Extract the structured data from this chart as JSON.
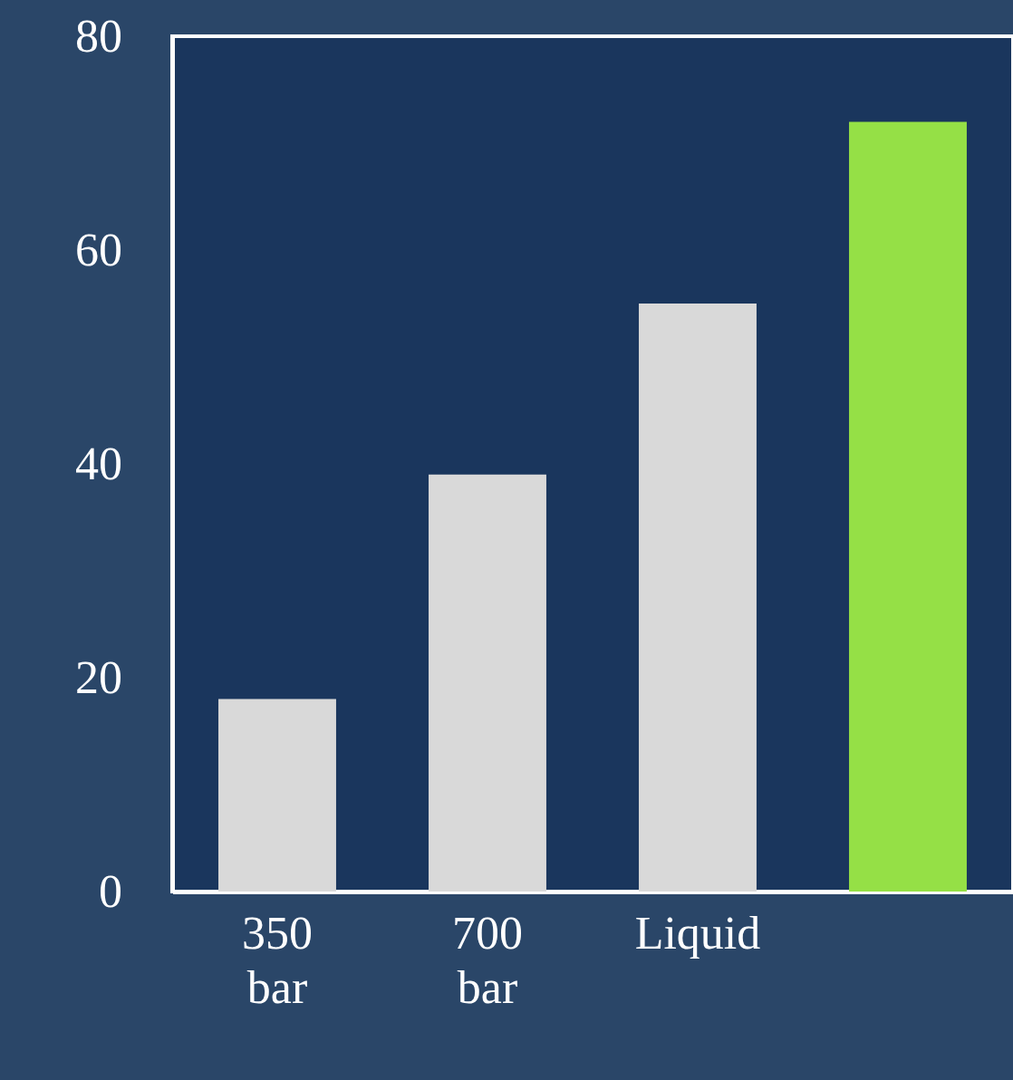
{
  "chart_data": {
    "type": "bar",
    "categories": [
      "350 bar",
      "700 bar",
      "Liquid",
      null
    ],
    "values": [
      18,
      39,
      55,
      72
    ],
    "colors": [
      "#d9d9d9",
      "#d9d9d9",
      "#d9d9d9",
      "#95e046"
    ],
    "ylim": [
      0,
      80
    ],
    "yticks": [
      0,
      20,
      40,
      60,
      80
    ],
    "grid": false
  }
}
